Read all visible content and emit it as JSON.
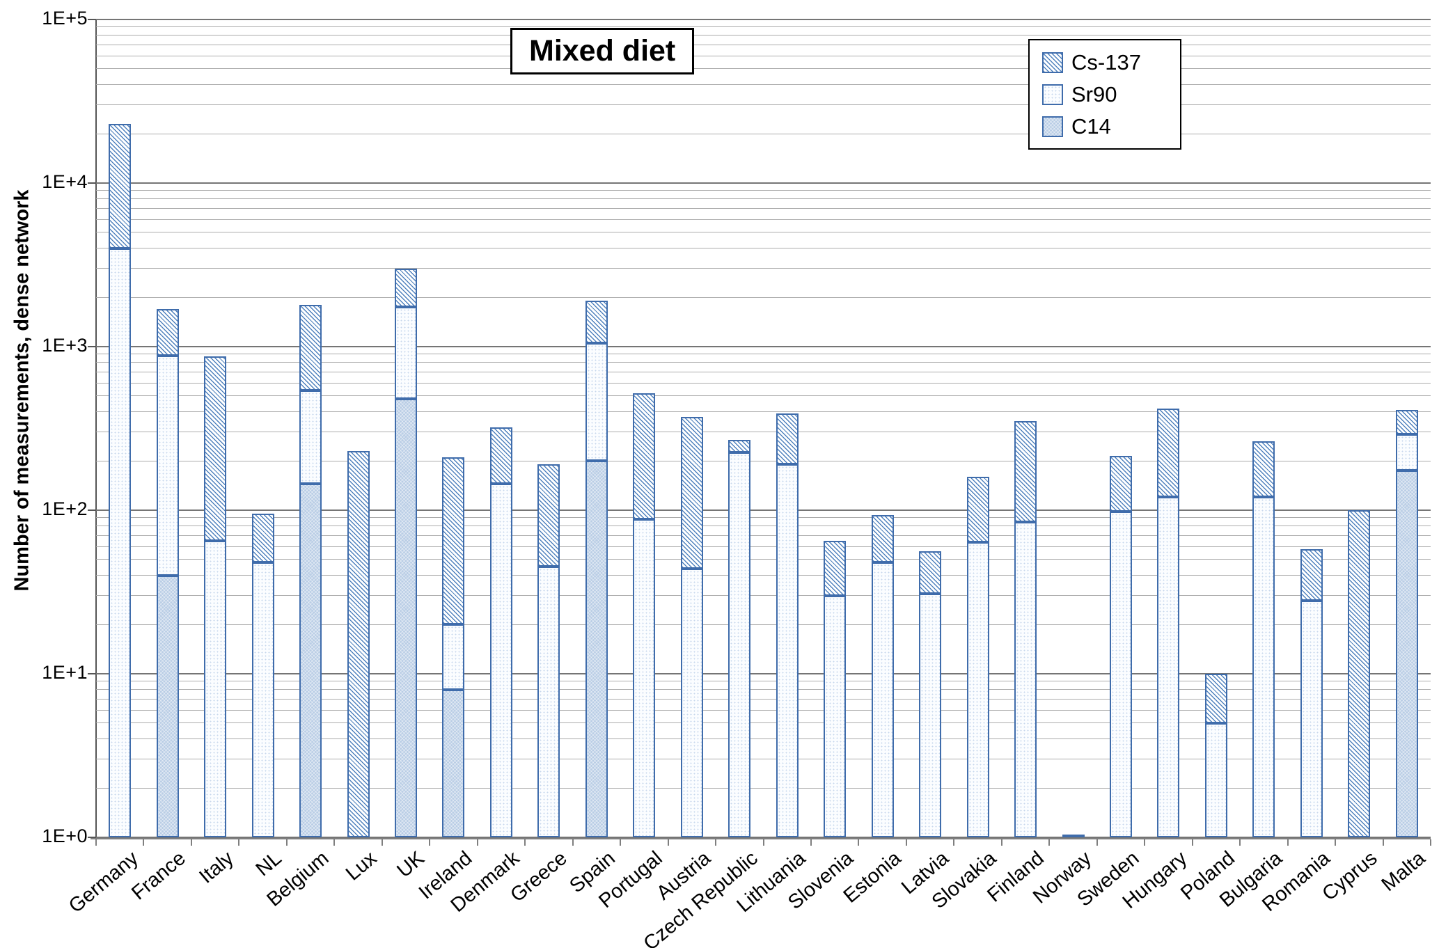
{
  "chart_data": {
    "type": "bar",
    "stacked": true,
    "y_scale": "log10",
    "ylim": [
      1,
      100000
    ],
    "grid": "major decade lines + minor log gridlines",
    "title": "Mixed diet",
    "ylabel": "Number of measurements, dense network",
    "xlabel": "",
    "y_ticks": [
      "1E+0",
      "1E+1",
      "1E+2",
      "1E+3",
      "1E+4",
      "1E+5"
    ],
    "legend": {
      "position": "top-right",
      "entries": [
        "Cs-137",
        "Sr90",
        "C14"
      ]
    },
    "categories": [
      "Germany",
      "France",
      "Italy",
      "NL",
      "Belgium",
      "Lux",
      "UK",
      "Ireland",
      "Denmark",
      "Greece",
      "Spain",
      "Portugal",
      "Austria",
      "Czech Republic",
      "Lithuania",
      "Slovenia",
      "Estonia",
      "Latvia",
      "Slovakia",
      "Finland",
      "Norway",
      "Sweden",
      "Hungary",
      "Poland",
      "Bulgaria",
      "Romania",
      "Cyprus",
      "Malta"
    ],
    "series": [
      {
        "name": "C14",
        "stack_order": "bottom",
        "values": [
          0,
          40,
          0,
          0,
          145,
          0,
          480,
          8,
          0,
          0,
          200,
          0,
          0,
          0,
          0,
          0,
          0,
          0,
          0,
          0,
          0,
          0,
          0,
          0,
          0,
          0,
          0,
          175
        ]
      },
      {
        "name": "Sr90",
        "stack_order": "middle",
        "values": [
          4000,
          840,
          65,
          48,
          395,
          0,
          1270,
          12,
          145,
          45,
          850,
          88,
          44,
          225,
          190,
          30,
          48,
          31,
          64,
          85,
          1,
          98,
          120,
          5,
          120,
          28,
          0,
          115
        ]
      },
      {
        "name": "Cs-137",
        "stack_order": "top",
        "values": [
          19000,
          820,
          805,
          47,
          1260,
          230,
          1250,
          190,
          175,
          145,
          850,
          432,
          326,
          45,
          200,
          35,
          45,
          25,
          96,
          265,
          0,
          117,
          300,
          5,
          145,
          30,
          100,
          120
        ]
      }
    ]
  },
  "colors": {
    "bar_border": "#3f6cab",
    "cs137_hatch_line": "#4f81bd",
    "sr90_fill": "#fbfdff",
    "sr90_dot": "#c7d7ec",
    "c14_fill": "#b9cde5",
    "major_gridline": "#757575",
    "minor_gridline": "#ababab",
    "axis_line": "#555555"
  }
}
